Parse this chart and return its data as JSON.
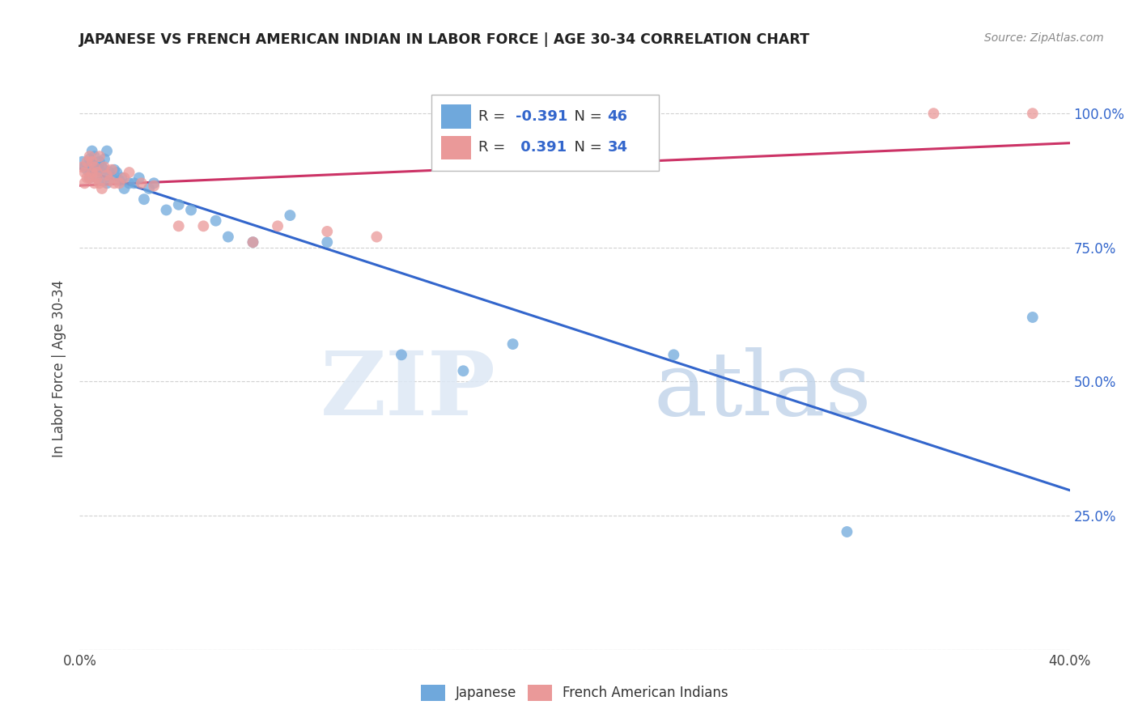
{
  "title": "JAPANESE VS FRENCH AMERICAN INDIAN IN LABOR FORCE | AGE 30-34 CORRELATION CHART",
  "source": "Source: ZipAtlas.com",
  "ylabel": "In Labor Force | Age 30-34",
  "xlim": [
    0.0,
    0.4
  ],
  "ylim": [
    0.0,
    1.05
  ],
  "japanese_x": [
    0.001,
    0.002,
    0.003,
    0.004,
    0.004,
    0.005,
    0.005,
    0.006,
    0.006,
    0.007,
    0.007,
    0.008,
    0.008,
    0.009,
    0.009,
    0.01,
    0.01,
    0.011,
    0.011,
    0.012,
    0.013,
    0.014,
    0.015,
    0.016,
    0.017,
    0.018,
    0.02,
    0.022,
    0.024,
    0.026,
    0.028,
    0.03,
    0.035,
    0.04,
    0.045,
    0.055,
    0.06,
    0.07,
    0.085,
    0.1,
    0.13,
    0.155,
    0.175,
    0.24,
    0.31,
    0.385
  ],
  "japanese_y": [
    0.91,
    0.9,
    0.895,
    0.915,
    0.88,
    0.905,
    0.93,
    0.895,
    0.92,
    0.9,
    0.88,
    0.91,
    0.895,
    0.9,
    0.875,
    0.915,
    0.895,
    0.93,
    0.87,
    0.89,
    0.88,
    0.895,
    0.89,
    0.875,
    0.88,
    0.86,
    0.87,
    0.87,
    0.88,
    0.84,
    0.86,
    0.87,
    0.82,
    0.83,
    0.82,
    0.8,
    0.77,
    0.76,
    0.81,
    0.76,
    0.55,
    0.52,
    0.57,
    0.55,
    0.22,
    0.62
  ],
  "french_x": [
    0.001,
    0.002,
    0.002,
    0.003,
    0.003,
    0.004,
    0.004,
    0.005,
    0.005,
    0.006,
    0.006,
    0.007,
    0.007,
    0.008,
    0.008,
    0.009,
    0.01,
    0.011,
    0.012,
    0.013,
    0.014,
    0.016,
    0.018,
    0.02,
    0.025,
    0.03,
    0.04,
    0.05,
    0.07,
    0.08,
    0.1,
    0.12,
    0.345,
    0.385
  ],
  "french_y": [
    0.9,
    0.87,
    0.89,
    0.91,
    0.88,
    0.92,
    0.88,
    0.89,
    0.91,
    0.9,
    0.87,
    0.88,
    0.89,
    0.92,
    0.87,
    0.86,
    0.9,
    0.885,
    0.875,
    0.895,
    0.87,
    0.87,
    0.88,
    0.89,
    0.87,
    0.865,
    0.79,
    0.79,
    0.76,
    0.79,
    0.78,
    0.77,
    1.0,
    1.0
  ],
  "japanese_color": "#6fa8dc",
  "french_color": "#ea9999",
  "japanese_line_color": "#3366cc",
  "french_line_color": "#cc3366",
  "japanese_R": -0.391,
  "japanese_N": 46,
  "french_R": 0.391,
  "french_N": 34,
  "legend_label_japanese": "Japanese",
  "legend_label_french": "French American Indians",
  "watermark_zip": "ZIP",
  "watermark_atlas": "atlas",
  "background_color": "#ffffff",
  "grid_color": "#cccccc"
}
